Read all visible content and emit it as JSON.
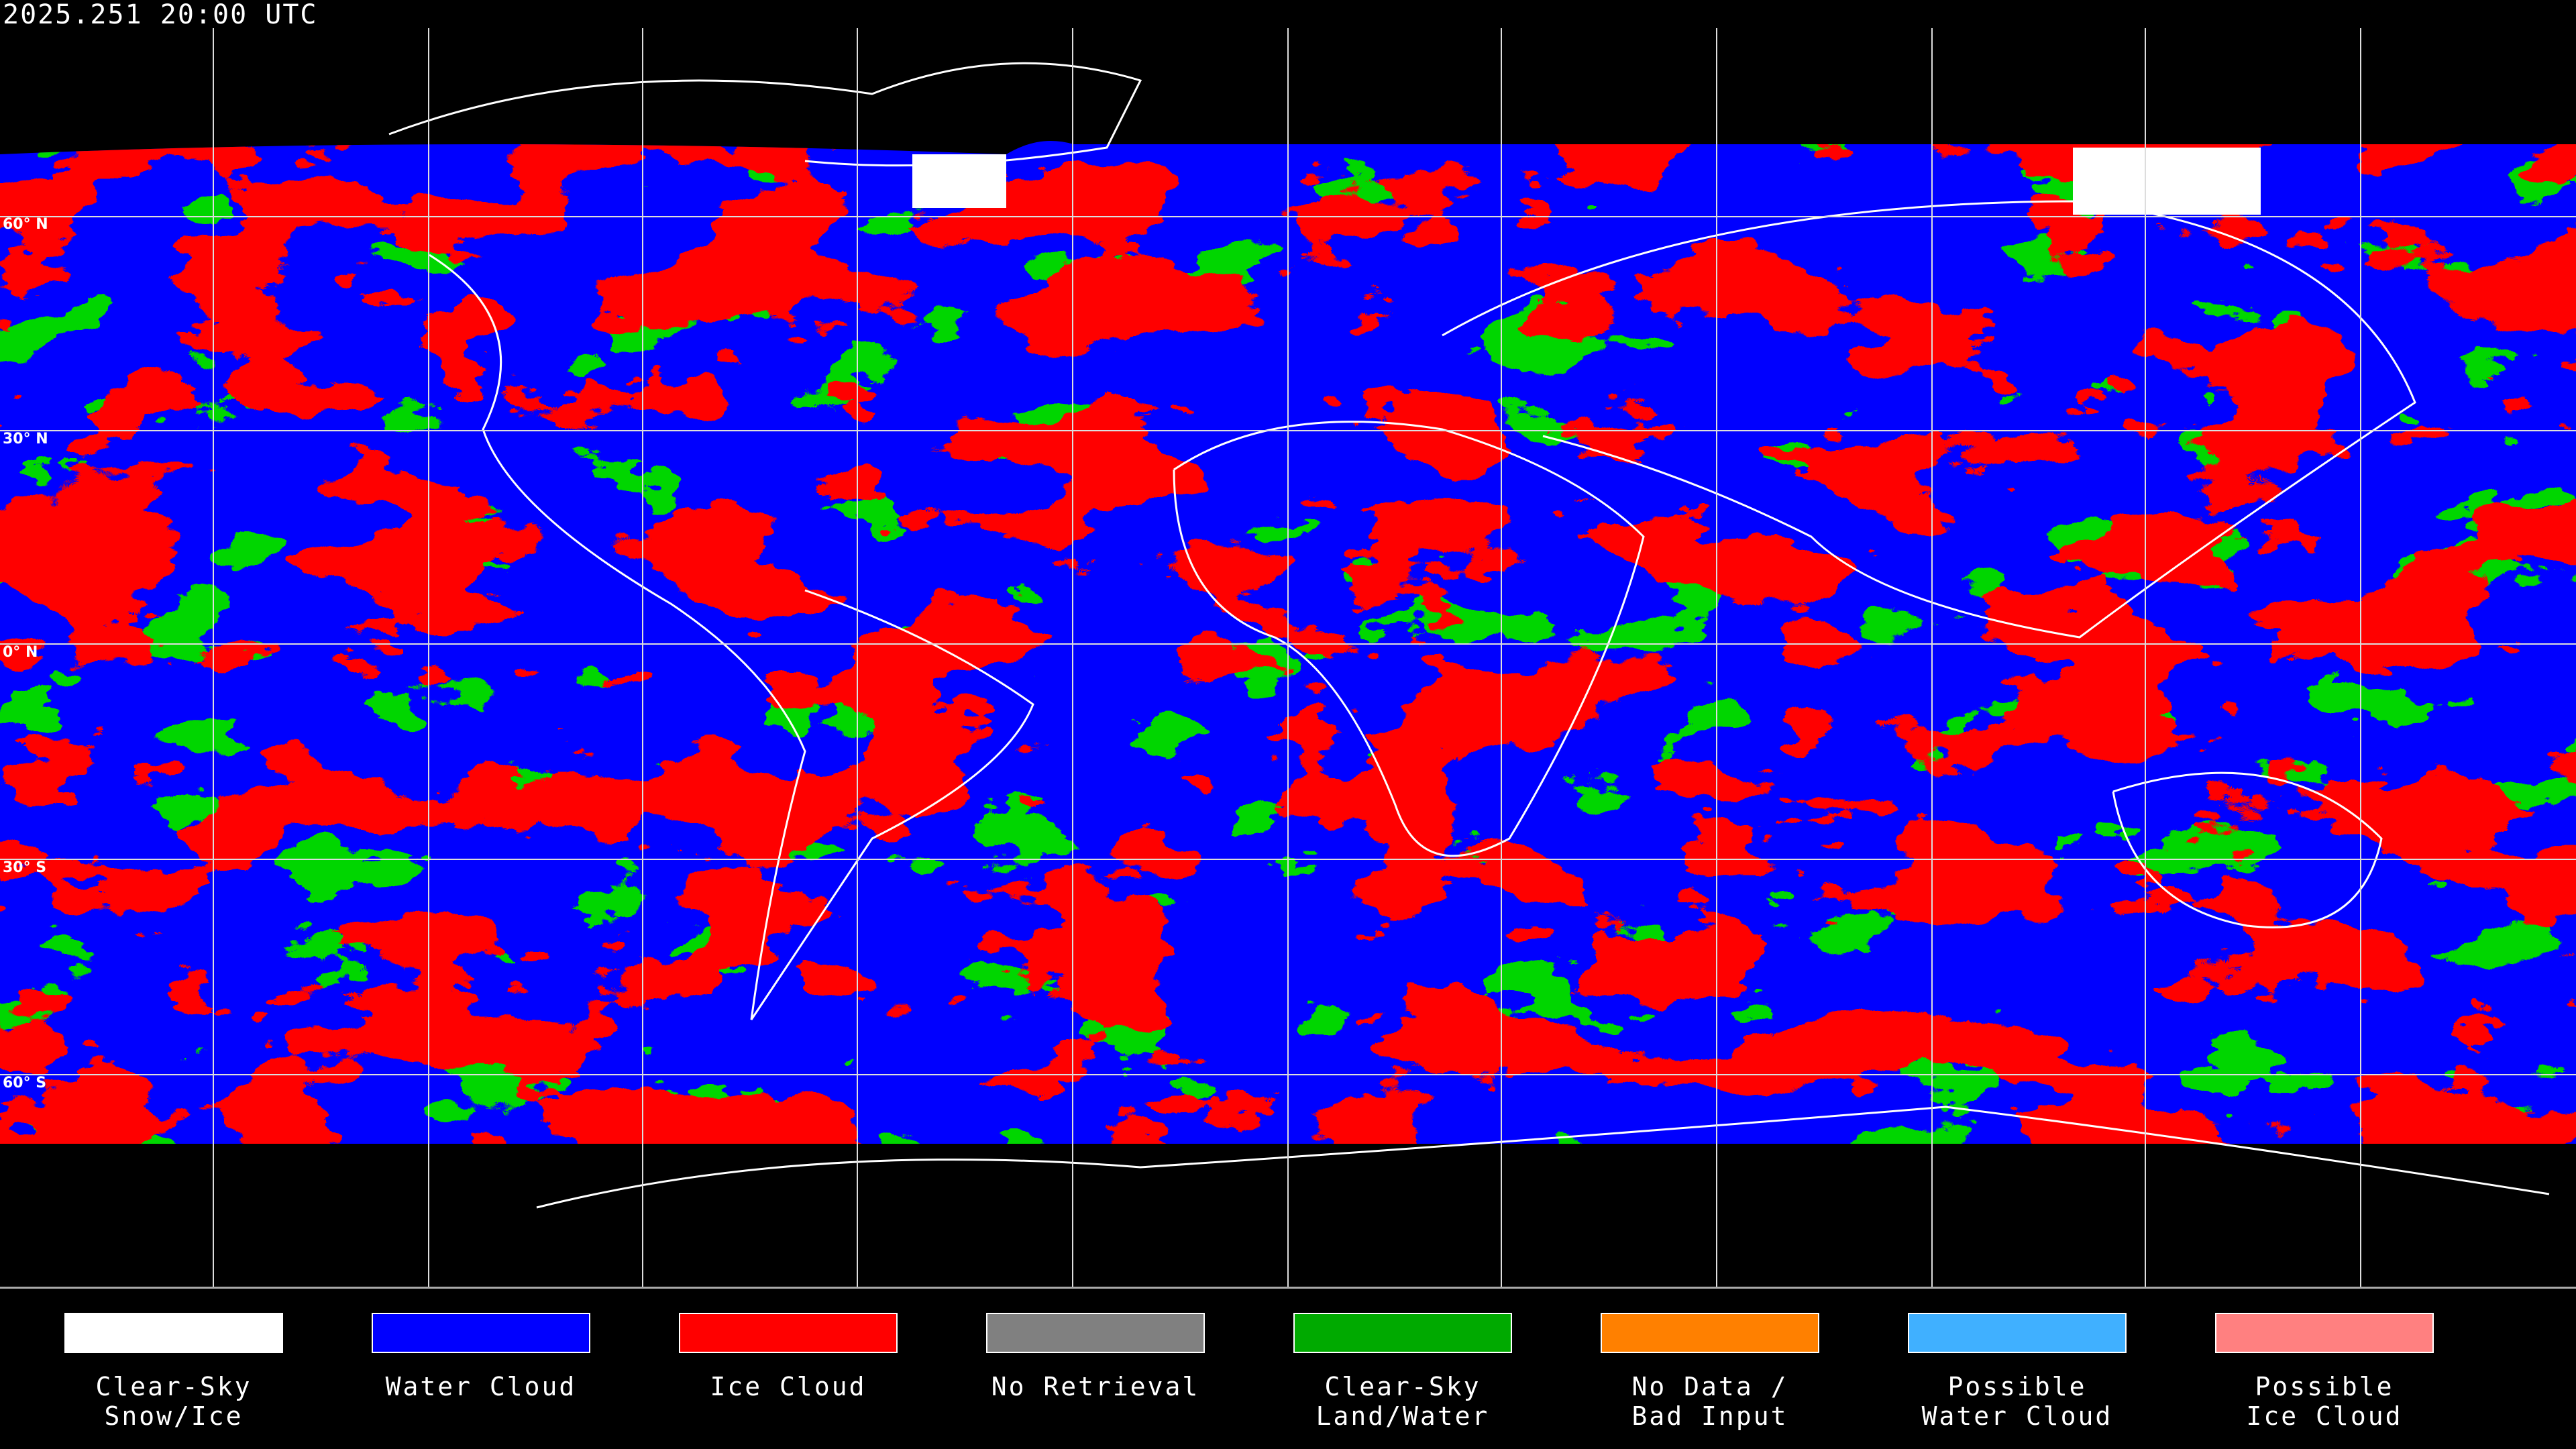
{
  "timestamp": "2025.251 20:00 UTC",
  "latitude_labels": [
    "60° N",
    "30° N",
    "0° N",
    "30° S",
    "60° S"
  ],
  "legend": [
    {
      "label": "Clear-Sky\nSnow/Ice",
      "color": "#ffffff"
    },
    {
      "label": "Water Cloud",
      "color": "#0000ff"
    },
    {
      "label": "Ice Cloud",
      "color": "#ff0000"
    },
    {
      "label": "No Retrieval",
      "color": "#808080"
    },
    {
      "label": "Clear-Sky\nLand/Water",
      "color": "#00aa00"
    },
    {
      "label": "No Data /\nBad Input",
      "color": "#ff8000"
    },
    {
      "label": "Possible\nWater Cloud",
      "color": "#40b0ff"
    },
    {
      "label": "Possible\nIce Cloud",
      "color": "#ff8080"
    }
  ]
}
